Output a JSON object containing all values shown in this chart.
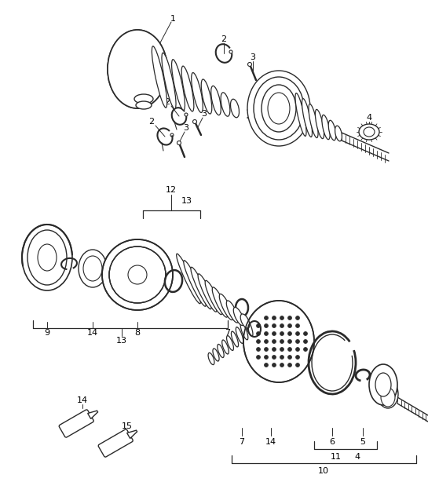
{
  "background_color": "#ffffff",
  "line_color": "#2a2a2a",
  "label_color": "#000000",
  "lw": 1.0,
  "fig_width": 5.45,
  "fig_height": 6.28,
  "dpi": 100
}
